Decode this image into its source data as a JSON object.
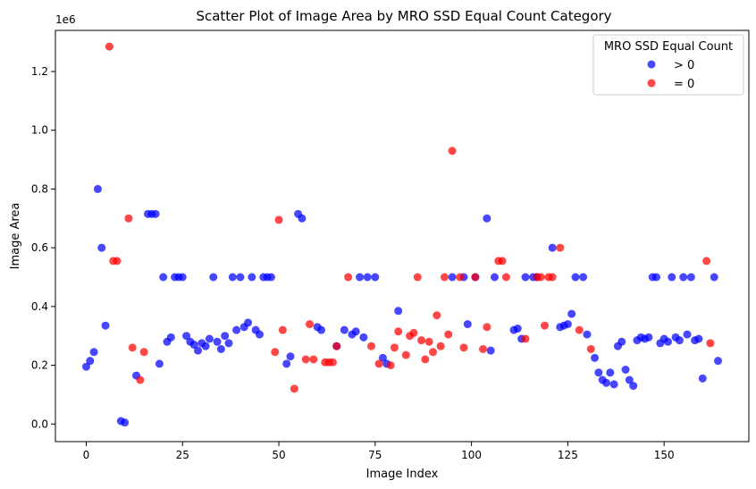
{
  "chart_data": {
    "type": "scatter",
    "title": "Scatter Plot of Image Area by MRO SSD Equal Count Category",
    "xlabel": "Image Index",
    "ylabel": "Image Area",
    "y_multiplier_label": "1e6",
    "xlim": [
      -8,
      172
    ],
    "ylim": [
      -60000,
      1340000
    ],
    "x_ticks": [
      0,
      25,
      50,
      75,
      100,
      125,
      150
    ],
    "y_ticks": [
      0.0,
      0.2,
      0.4,
      0.6,
      0.8,
      1.0,
      1.2
    ],
    "y_tick_labels": [
      "0.0",
      "0.2",
      "0.4",
      "0.6",
      "0.8",
      "1.0",
      "1.2"
    ],
    "grid": false,
    "legend": {
      "title": "MRO SSD Equal Count",
      "position": "top-right",
      "entries": [
        "> 0",
        "= 0"
      ]
    },
    "series": [
      {
        "name": "> 0",
        "color": "#0000ff",
        "points": [
          [
            0,
            195000
          ],
          [
            1,
            215000
          ],
          [
            2,
            245000
          ],
          [
            3,
            800000
          ],
          [
            4,
            600000
          ],
          [
            5,
            335000
          ],
          [
            9,
            10000
          ],
          [
            10,
            5000
          ],
          [
            13,
            165000
          ],
          [
            16,
            715000
          ],
          [
            17,
            715000
          ],
          [
            18,
            715000
          ],
          [
            19,
            205000
          ],
          [
            20,
            500000
          ],
          [
            21,
            280000
          ],
          [
            22,
            295000
          ],
          [
            23,
            500000
          ],
          [
            24,
            500000
          ],
          [
            25,
            500000
          ],
          [
            26,
            300000
          ],
          [
            27,
            280000
          ],
          [
            28,
            270000
          ],
          [
            29,
            250000
          ],
          [
            30,
            275000
          ],
          [
            31,
            265000
          ],
          [
            32,
            290000
          ],
          [
            33,
            500000
          ],
          [
            34,
            280000
          ],
          [
            35,
            255000
          ],
          [
            36,
            300000
          ],
          [
            37,
            275000
          ],
          [
            38,
            500000
          ],
          [
            39,
            320000
          ],
          [
            40,
            500000
          ],
          [
            41,
            330000
          ],
          [
            42,
            345000
          ],
          [
            43,
            500000
          ],
          [
            44,
            320000
          ],
          [
            45,
            305000
          ],
          [
            46,
            500000
          ],
          [
            47,
            500000
          ],
          [
            48,
            500000
          ],
          [
            52,
            205000
          ],
          [
            53,
            230000
          ],
          [
            55,
            715000
          ],
          [
            56,
            700000
          ],
          [
            60,
            330000
          ],
          [
            61,
            320000
          ],
          [
            65,
            265000
          ],
          [
            67,
            320000
          ],
          [
            69,
            305000
          ],
          [
            70,
            315000
          ],
          [
            71,
            500000
          ],
          [
            72,
            295000
          ],
          [
            73,
            500000
          ],
          [
            75,
            500000
          ],
          [
            77,
            225000
          ],
          [
            78,
            205000
          ],
          [
            81,
            385000
          ],
          [
            95,
            500000
          ],
          [
            98,
            500000
          ],
          [
            99,
            340000
          ],
          [
            101,
            500000
          ],
          [
            104,
            700000
          ],
          [
            105,
            250000
          ],
          [
            106,
            500000
          ],
          [
            111,
            320000
          ],
          [
            112,
            325000
          ],
          [
            113,
            290000
          ],
          [
            114,
            500000
          ],
          [
            116,
            500000
          ],
          [
            117,
            500000
          ],
          [
            121,
            600000
          ],
          [
            123,
            330000
          ],
          [
            124,
            335000
          ],
          [
            125,
            340000
          ],
          [
            126,
            375000
          ],
          [
            127,
            500000
          ],
          [
            129,
            500000
          ],
          [
            130,
            305000
          ],
          [
            132,
            225000
          ],
          [
            133,
            175000
          ],
          [
            134,
            150000
          ],
          [
            135,
            140000
          ],
          [
            136,
            175000
          ],
          [
            137,
            135000
          ],
          [
            138,
            265000
          ],
          [
            139,
            280000
          ],
          [
            140,
            185000
          ],
          [
            141,
            150000
          ],
          [
            142,
            130000
          ],
          [
            143,
            285000
          ],
          [
            144,
            295000
          ],
          [
            145,
            290000
          ],
          [
            146,
            295000
          ],
          [
            147,
            500000
          ],
          [
            148,
            500000
          ],
          [
            149,
            275000
          ],
          [
            150,
            290000
          ],
          [
            151,
            280000
          ],
          [
            152,
            500000
          ],
          [
            153,
            295000
          ],
          [
            154,
            285000
          ],
          [
            155,
            500000
          ],
          [
            156,
            305000
          ],
          [
            157,
            500000
          ],
          [
            158,
            285000
          ],
          [
            159,
            290000
          ],
          [
            160,
            155000
          ],
          [
            163,
            500000
          ],
          [
            164,
            215000
          ]
        ]
      },
      {
        "name": "= 0",
        "color": "#ff0000",
        "points": [
          [
            6,
            1285000
          ],
          [
            7,
            555000
          ],
          [
            8,
            555000
          ],
          [
            11,
            700000
          ],
          [
            12,
            260000
          ],
          [
            14,
            150000
          ],
          [
            15,
            245000
          ],
          [
            49,
            245000
          ],
          [
            50,
            695000
          ],
          [
            51,
            320000
          ],
          [
            54,
            120000
          ],
          [
            57,
            220000
          ],
          [
            58,
            340000
          ],
          [
            59,
            220000
          ],
          [
            62,
            210000
          ],
          [
            63,
            210000
          ],
          [
            64,
            210000
          ],
          [
            65,
            265000
          ],
          [
            68,
            500000
          ],
          [
            74,
            265000
          ],
          [
            76,
            205000
          ],
          [
            79,
            200000
          ],
          [
            80,
            260000
          ],
          [
            81,
            315000
          ],
          [
            83,
            235000
          ],
          [
            84,
            300000
          ],
          [
            85,
            310000
          ],
          [
            86,
            500000
          ],
          [
            87,
            285000
          ],
          [
            88,
            220000
          ],
          [
            89,
            280000
          ],
          [
            90,
            245000
          ],
          [
            91,
            370000
          ],
          [
            92,
            265000
          ],
          [
            93,
            500000
          ],
          [
            94,
            305000
          ],
          [
            95,
            930000
          ],
          [
            97,
            500000
          ],
          [
            98,
            260000
          ],
          [
            101,
            500000
          ],
          [
            103,
            255000
          ],
          [
            104,
            330000
          ],
          [
            107,
            555000
          ],
          [
            108,
            555000
          ],
          [
            109,
            500000
          ],
          [
            114,
            290000
          ],
          [
            117,
            500000
          ],
          [
            118,
            500000
          ],
          [
            119,
            335000
          ],
          [
            120,
            500000
          ],
          [
            121,
            500000
          ],
          [
            123,
            600000
          ],
          [
            128,
            320000
          ],
          [
            131,
            255000
          ],
          [
            161,
            555000
          ],
          [
            162,
            275000
          ]
        ]
      }
    ]
  }
}
